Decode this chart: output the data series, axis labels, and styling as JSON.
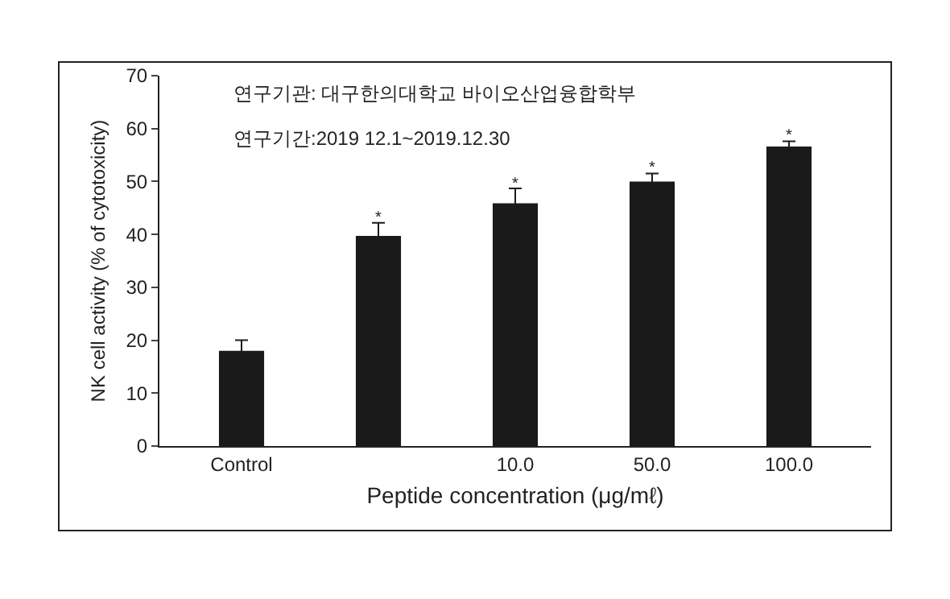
{
  "chart_data": {
    "type": "bar",
    "xlabel": "Peptide concentration (μg/mℓ)",
    "ylabel": "NK cell activity (% of cytotoxicity)",
    "categories": [
      "Control",
      null,
      "10.0",
      "50.0",
      "100.0"
    ],
    "values": [
      18,
      39.7,
      45.9,
      50,
      56.6
    ],
    "errors": [
      2,
      2.5,
      2.8,
      1.5,
      1
    ],
    "color": "#1a1a1a",
    "ylim": [
      0,
      70
    ],
    "yticks": [
      0,
      10,
      20,
      30,
      40,
      50,
      60,
      70
    ],
    "grid": false,
    "annotations": [
      "연구기관: 대구한의대학교 바이오산업융합학부",
      "연구기간:2019 12.1~2019.12.30",
      {
        "text": "*",
        "y": 43
      },
      {
        "text": "*",
        "x": "10.0",
        "y": 49.5
      },
      {
        "text": "*",
        "x": "50.0",
        "y": 52.5
      },
      {
        "text": "*",
        "x": "100.0",
        "y": 58.5
      }
    ]
  }
}
